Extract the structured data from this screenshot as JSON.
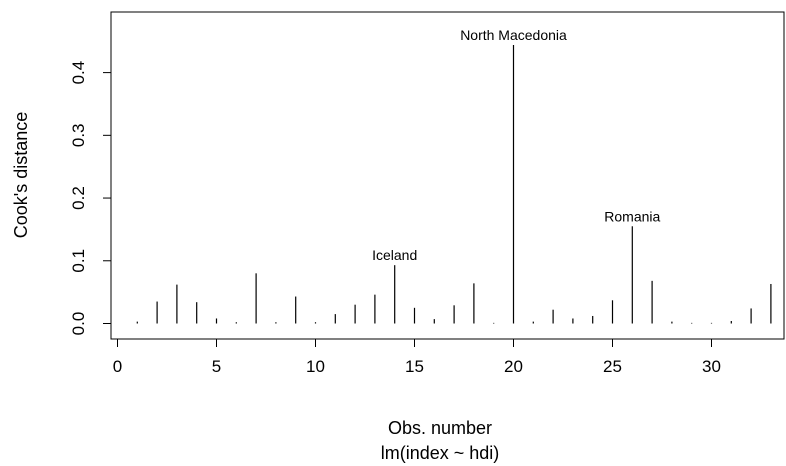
{
  "chart_data": {
    "type": "bar",
    "title": "",
    "xlabel": "Obs. number",
    "subtitle": "lm(index ~ hdi)",
    "ylabel": "Cook's distance",
    "x": [
      1,
      2,
      3,
      4,
      5,
      6,
      7,
      8,
      9,
      10,
      11,
      12,
      13,
      14,
      15,
      16,
      17,
      18,
      19,
      20,
      21,
      22,
      23,
      24,
      25,
      26,
      27,
      28,
      29,
      30,
      31,
      32,
      33
    ],
    "values": [
      0.003,
      0.035,
      0.062,
      0.034,
      0.008,
      0.002,
      0.08,
      0.002,
      0.043,
      0.002,
      0.015,
      0.03,
      0.046,
      0.093,
      0.025,
      0.007,
      0.029,
      0.064,
      0.001,
      0.444,
      0.003,
      0.022,
      0.008,
      0.012,
      0.037,
      0.155,
      0.068,
      0.003,
      0.001,
      0.001,
      0.004,
      0.024,
      0.063
    ],
    "xlim": [
      0,
      33.5
    ],
    "ylim": [
      0,
      0.444
    ],
    "xticks": [
      0,
      5,
      10,
      15,
      20,
      25,
      30
    ],
    "yticks": [
      "0.0",
      "0.1",
      "0.2",
      "0.3",
      "0.4"
    ],
    "annotations": [
      {
        "x": 14,
        "text": "Iceland"
      },
      {
        "x": 20,
        "text": "North Macedonia"
      },
      {
        "x": 26,
        "text": "Romania"
      }
    ],
    "grid": false
  }
}
